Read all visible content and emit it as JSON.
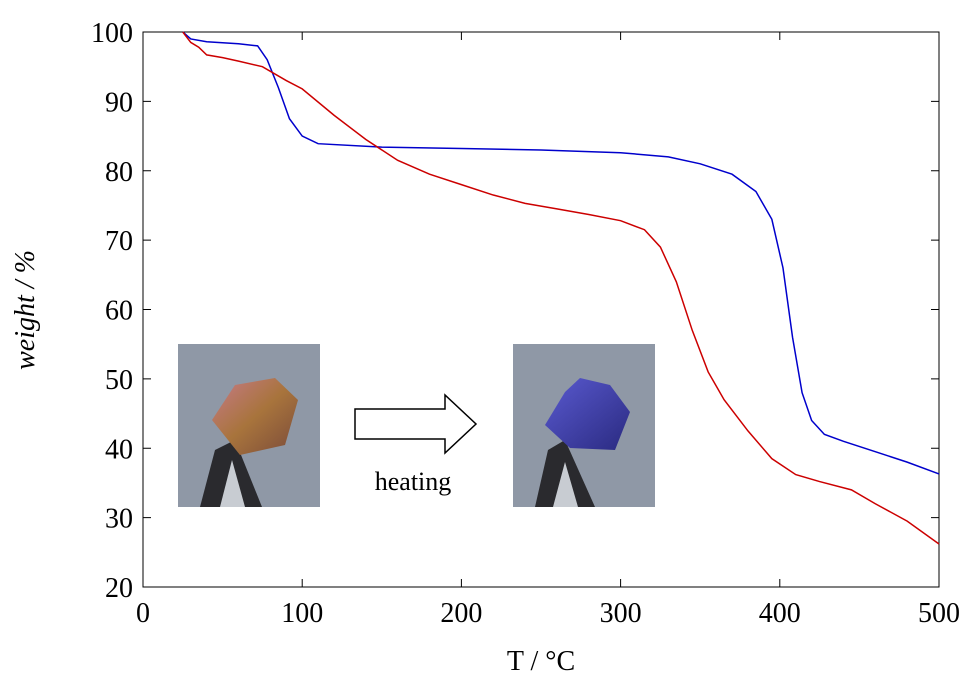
{
  "chart_data": {
    "type": "line",
    "xlabel": "T / °C",
    "ylabel": "weight / %",
    "annotation": "heating",
    "xlim": [
      0,
      500
    ],
    "xticks": [
      0,
      100,
      200,
      300,
      400,
      500
    ],
    "ylim": [
      20,
      100
    ],
    "yticks": [
      20,
      30,
      40,
      50,
      60,
      70,
      80,
      90,
      100
    ],
    "grid": false,
    "series": [
      {
        "color": "#0000cc",
        "x": [
          25,
          30,
          40,
          60,
          72,
          78,
          85,
          92,
          100,
          110,
          150,
          200,
          250,
          300,
          330,
          350,
          370,
          385,
          395,
          402,
          408,
          414,
          420,
          428,
          440,
          460,
          480,
          500
        ],
        "values": [
          100,
          99,
          98.6,
          98.3,
          98,
          96,
          92,
          87.5,
          85,
          83.9,
          83.4,
          83.2,
          83,
          82.6,
          82,
          81,
          79.5,
          77,
          73,
          66,
          56,
          48,
          44,
          42,
          41,
          39.5,
          38,
          36.3
        ]
      },
      {
        "color": "#cc0000",
        "x": [
          25,
          30,
          35,
          40,
          50,
          60,
          75,
          90,
          100,
          120,
          140,
          160,
          180,
          200,
          220,
          240,
          260,
          280,
          300,
          315,
          325,
          335,
          345,
          355,
          365,
          380,
          395,
          410,
          425,
          445,
          460,
          480,
          500
        ],
        "values": [
          100,
          98.5,
          97.8,
          96.7,
          96.3,
          95.8,
          95,
          93,
          91.8,
          88,
          84.5,
          81.5,
          79.5,
          78,
          76.5,
          75.3,
          74.5,
          73.7,
          72.8,
          71.5,
          69,
          64,
          57,
          51,
          47,
          42.5,
          38.5,
          36.2,
          35.2,
          34,
          32,
          29.5,
          26.2
        ]
      }
    ]
  }
}
